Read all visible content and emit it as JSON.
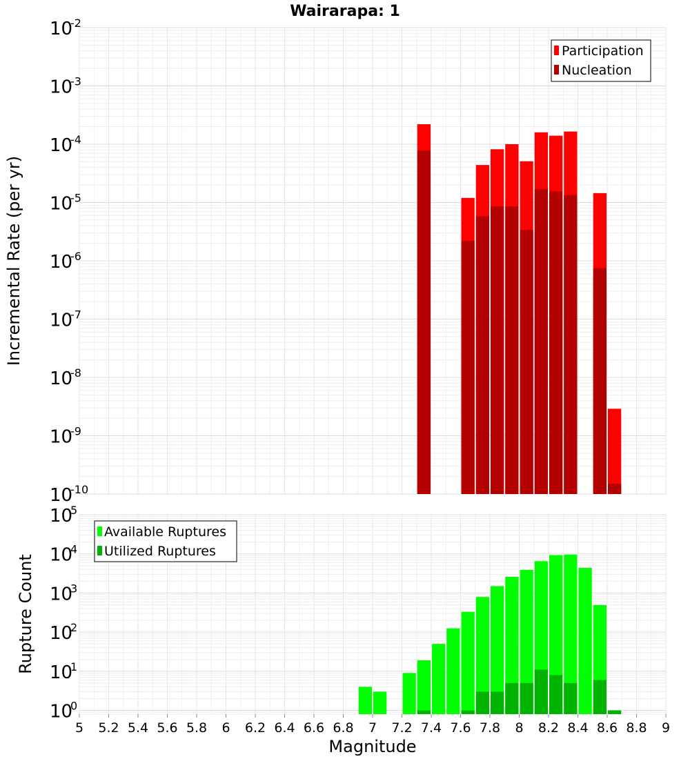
{
  "chart_data": [
    {
      "type": "bar",
      "title": "Wairarapa: 1",
      "ylabel": "Incremental Rate (per yr)",
      "xlabel": "",
      "yscale": "log",
      "ylim": [
        1e-10,
        0.01
      ],
      "xlim": [
        5,
        9
      ],
      "legend_position": "top-right",
      "grid": true,
      "series": [
        {
          "name": "Participation",
          "color": "#ff0000",
          "x": [
            7.35,
            7.65,
            7.75,
            7.85,
            7.95,
            8.05,
            8.15,
            8.25,
            8.35,
            8.55,
            8.65
          ],
          "values": [
            0.00022,
            1.2e-05,
            4.4e-05,
            8.2e-05,
            0.0001,
            5.1e-05,
            0.00016,
            0.00014,
            0.000165,
            1.45e-05,
            2.9e-09
          ]
        },
        {
          "name": "Nucleation",
          "color": "#b30000",
          "x": [
            7.35,
            7.65,
            7.75,
            7.85,
            7.95,
            8.05,
            8.15,
            8.25,
            8.35,
            8.55,
            8.65
          ],
          "values": [
            7.8e-05,
            2.2e-06,
            5.8e-06,
            8.6e-06,
            8.6e-06,
            3.4e-06,
            1.7e-05,
            1.55e-05,
            1.35e-05,
            7.5e-07,
            1.5e-10
          ]
        }
      ]
    },
    {
      "type": "bar",
      "title": "",
      "ylabel": "Rupture Count",
      "xlabel": "Magnitude",
      "yscale": "log",
      "ylim": [
        0.8,
        100000.0
      ],
      "xlim": [
        5,
        9
      ],
      "legend_position": "top-left",
      "grid": true,
      "x_ticks": [
        "5",
        "5.2",
        "5.4",
        "5.6",
        "5.8",
        "6",
        "6.2",
        "6.4",
        "6.6",
        "6.8",
        "7",
        "7.2",
        "7.4",
        "7.6",
        "7.8",
        "8",
        "8.2",
        "8.4",
        "8.6",
        "8.8",
        "9"
      ],
      "series": [
        {
          "name": "Available Ruptures",
          "color": "#00ff00",
          "x": [
            6.95,
            7.05,
            7.25,
            7.35,
            7.45,
            7.55,
            7.65,
            7.75,
            7.85,
            7.95,
            8.05,
            8.15,
            8.25,
            8.35,
            8.45,
            8.55
          ],
          "values": [
            4,
            3,
            9,
            19,
            50,
            125,
            330,
            790,
            1500,
            2600,
            3900,
            6500,
            9300,
            9600,
            4400,
            490
          ]
        },
        {
          "name": "Utilized Ruptures",
          "color": "#00b300",
          "x": [
            7.35,
            7.65,
            7.75,
            7.85,
            7.95,
            8.05,
            8.15,
            8.25,
            8.35,
            8.55,
            8.65
          ],
          "values": [
            1,
            1,
            3,
            3,
            5,
            5,
            11,
            8,
            5,
            6,
            1
          ]
        }
      ]
    }
  ]
}
